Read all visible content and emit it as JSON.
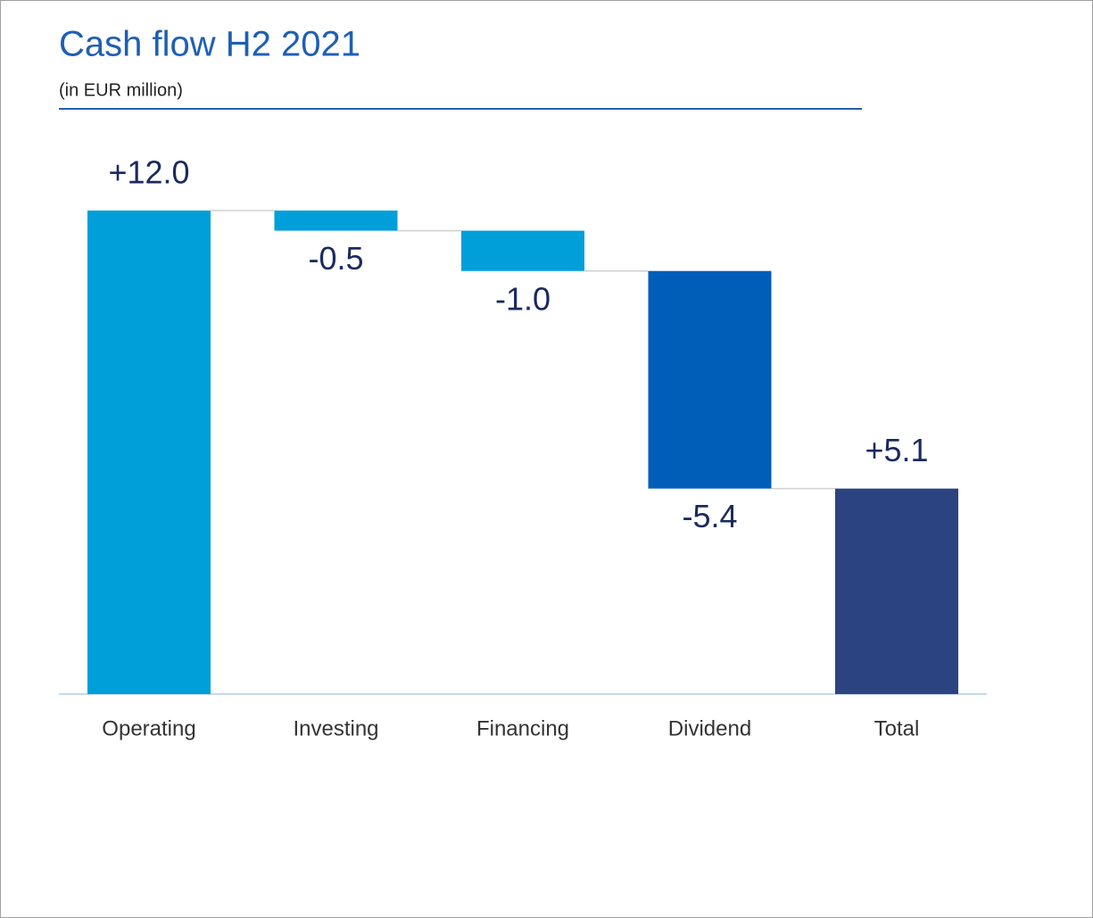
{
  "chart_data": {
    "type": "waterfall",
    "title": "Cash flow H2 2021",
    "subtitle": "(in EUR million)",
    "categories": [
      "Operating",
      "Investing",
      "Financing",
      "Dividend",
      "Total"
    ],
    "values": [
      12.0,
      -0.5,
      -1.0,
      -5.4,
      5.1
    ],
    "value_labels": [
      "+12.0",
      "-0.5",
      "-1.0",
      "-5.4",
      "+5.1"
    ],
    "measure": [
      "relative",
      "relative",
      "relative",
      "relative",
      "total"
    ],
    "colors": [
      "#009fda",
      "#009fda",
      "#009fda",
      "#005eb8",
      "#2b4380"
    ]
  }
}
